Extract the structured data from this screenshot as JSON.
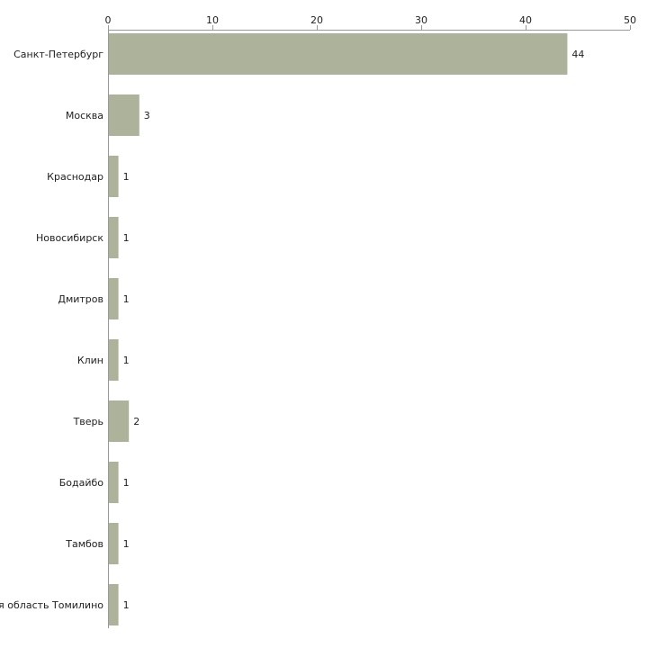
{
  "chart_data": {
    "type": "bar",
    "orientation": "horizontal",
    "title": "",
    "xlabel": "",
    "ylabel": "",
    "xlim": [
      0,
      50
    ],
    "x_ticks": [
      0,
      10,
      20,
      30,
      40,
      50
    ],
    "x_axis_position": "top",
    "grid": false,
    "bar_color": "#adb29a",
    "categories": [
      "Санкт-Петербург",
      "Москва",
      "Краснодар",
      "Новосибирск",
      "Дмитров",
      "Клин",
      "Тверь",
      "Бодайбо",
      "Тамбов",
      "Московская область Томилино"
    ],
    "values": [
      44,
      3,
      1,
      1,
      1,
      1,
      2,
      1,
      1,
      1
    ]
  }
}
